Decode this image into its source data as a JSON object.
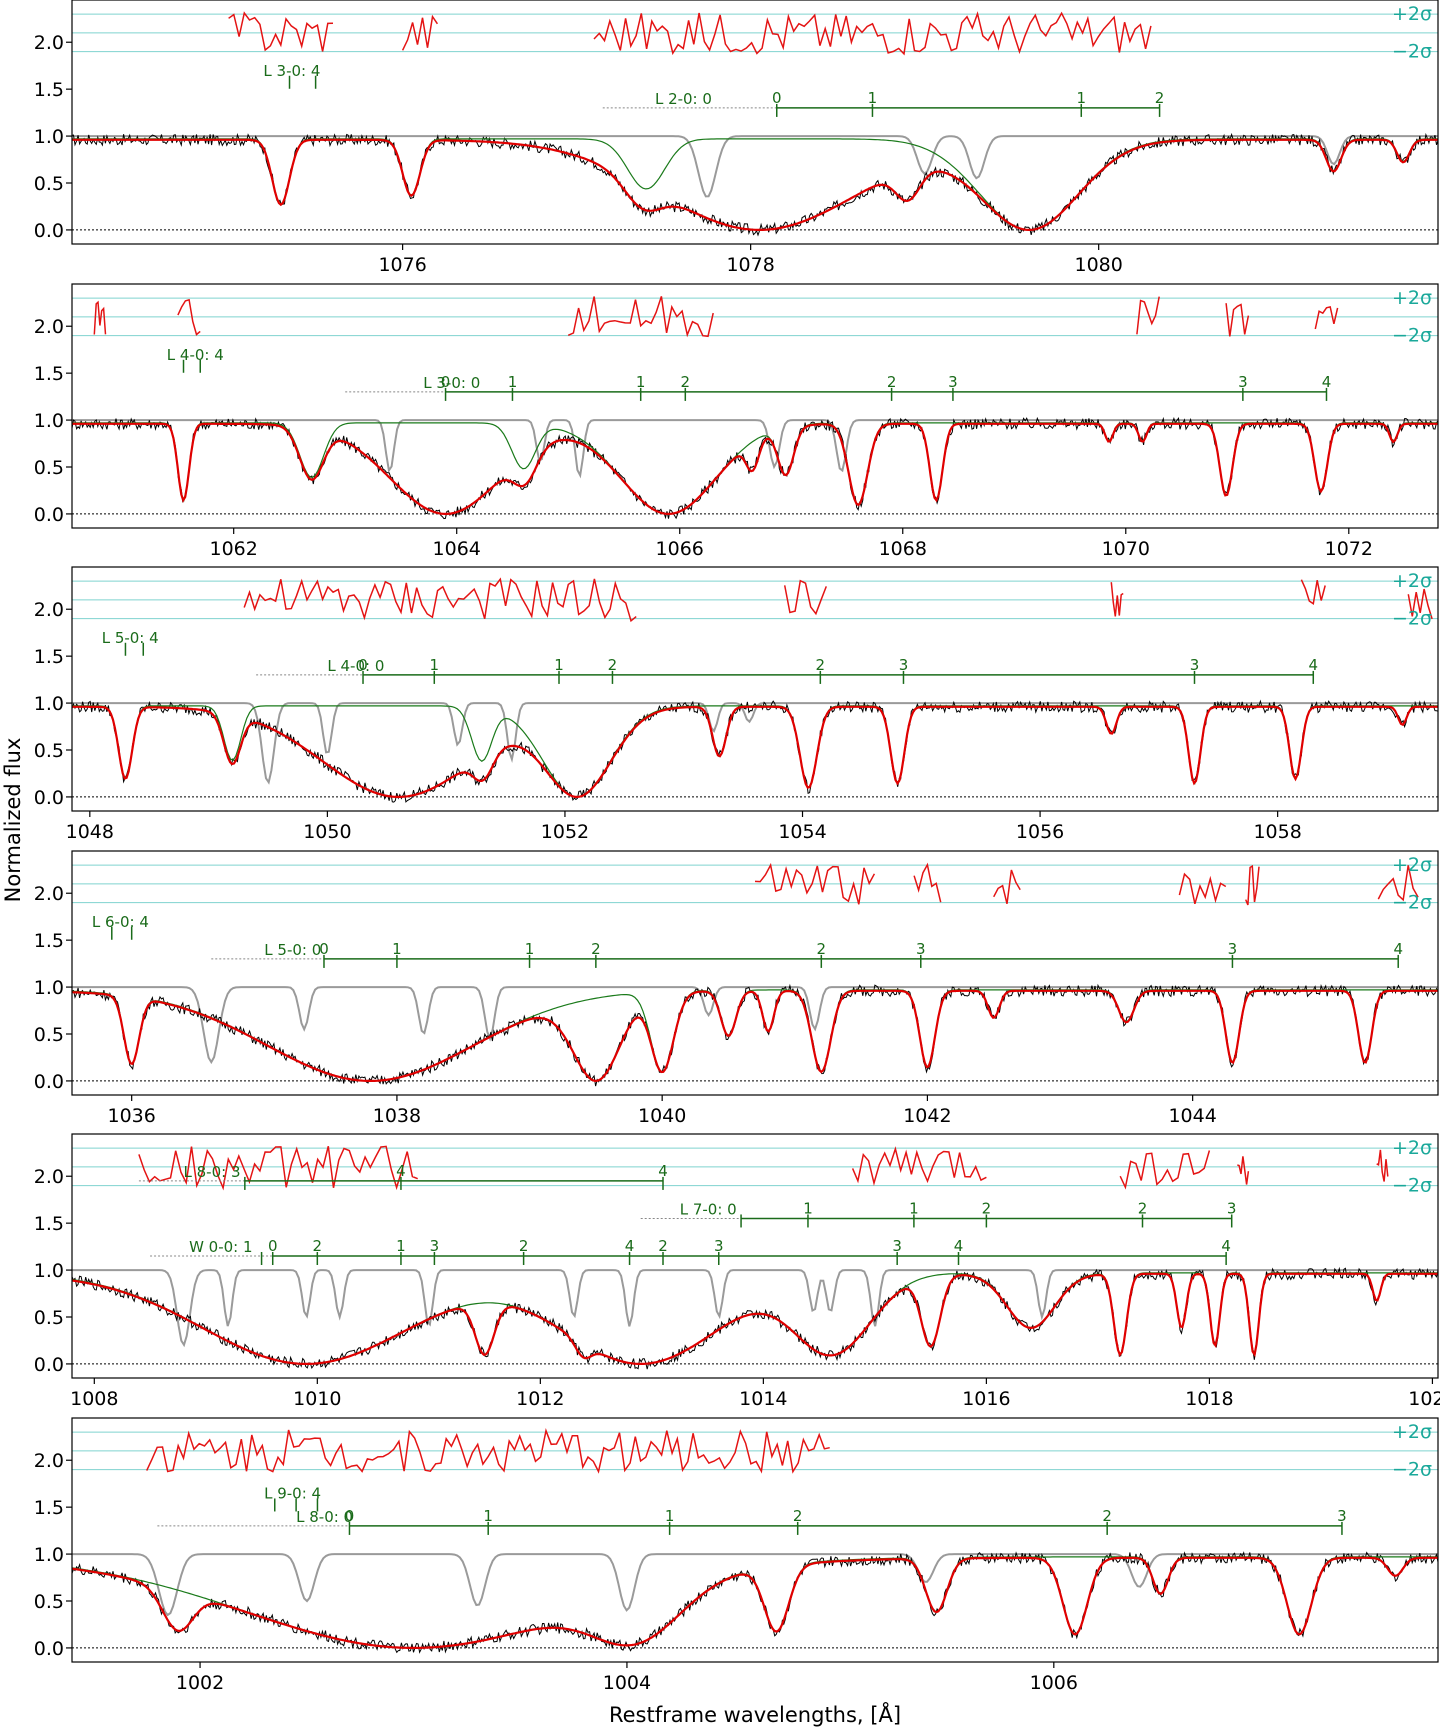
{
  "figure": {
    "ylabel": "Normalized flux",
    "xlabel": "Restframe wavelengths, [Å]",
    "sigma_plus": "+2σ",
    "sigma_minus": "−2σ"
  },
  "colors": {
    "data": "#000000",
    "fit": "#e00000",
    "residual": "#e41414",
    "component": "#9a9a9a",
    "partial": "#1a7a1a",
    "lines": "#1a6b1a",
    "sigma": "#7fd3cf"
  },
  "chart_data": [
    {
      "type": "line",
      "xlim": [
        1074.1,
        1081.95
      ],
      "ylim": [
        -0.15,
        2.45
      ],
      "xticks": [
        1076,
        1078,
        1080
      ],
      "yticks": [
        0.0,
        0.5,
        1.0,
        1.5,
        2.0
      ],
      "absorptions": [
        {
          "c": 1075.3,
          "d": 0.72,
          "w": 0.07
        },
        {
          "c": 1076.05,
          "d": 0.62,
          "w": 0.07
        },
        {
          "c": 1078.05,
          "d": 1.0,
          "w": 0.8
        },
        {
          "c": 1079.6,
          "d": 1.0,
          "w": 0.4
        },
        {
          "c": 1077.4,
          "d": 0.55,
          "w": 0.15
        },
        {
          "c": 1078.9,
          "d": 0.5,
          "w": 0.1
        },
        {
          "c": 1081.35,
          "d": 0.35,
          "w": 0.06
        },
        {
          "c": 1081.75,
          "d": 0.25,
          "w": 0.05
        }
      ],
      "components": [
        {
          "c": 1077.75,
          "d": 0.65,
          "w": 0.07
        },
        {
          "c": 1079.0,
          "d": 0.4,
          "w": 0.06
        },
        {
          "c": 1079.3,
          "d": 0.45,
          "w": 0.06
        },
        {
          "c": 1081.35,
          "d": 0.3,
          "w": 0.05
        }
      ],
      "residual_segments": [
        [
          1075.0,
          1075.6
        ],
        [
          1076.0,
          1076.2
        ],
        [
          1077.1,
          1080.3
        ]
      ],
      "line_sets": [
        {
          "label": "L 3-0: 4",
          "y": 1.6,
          "x_label": 1075.2,
          "start": null,
          "end": null,
          "ticks": [
            1075.35,
            1075.5
          ],
          "tick_labels": []
        },
        {
          "label": "L 2-0: 0",
          "y": 1.3,
          "x_label": 1077.45,
          "start": 1077.15,
          "solid_from": 1078.15,
          "end": 1080.35,
          "ticks": [
            1078.15,
            1078.7,
            1079.9,
            1080.35
          ],
          "tick_labels": [
            "0",
            "1",
            "1",
            "2"
          ]
        }
      ]
    },
    {
      "type": "line",
      "xlim": [
        1060.55,
        1072.8
      ],
      "ylim": [
        -0.15,
        2.45
      ],
      "xticks": [
        1062,
        1064,
        1066,
        1068,
        1070,
        1072
      ],
      "yticks": [
        0.0,
        0.5,
        1.0,
        1.5,
        2.0
      ],
      "absorptions": [
        {
          "c": 1061.55,
          "d": 0.85,
          "w": 0.07
        },
        {
          "c": 1062.7,
          "d": 0.6,
          "w": 0.15
        },
        {
          "c": 1063.9,
          "d": 1.0,
          "w": 0.7
        },
        {
          "c": 1065.9,
          "d": 1.0,
          "w": 0.6
        },
        {
          "c": 1064.6,
          "d": 0.5,
          "w": 0.15
        },
        {
          "c": 1066.65,
          "d": 0.4,
          "w": 0.08
        },
        {
          "c": 1066.95,
          "d": 0.55,
          "w": 0.1
        },
        {
          "c": 1067.6,
          "d": 0.9,
          "w": 0.12
        },
        {
          "c": 1068.3,
          "d": 0.85,
          "w": 0.08
        },
        {
          "c": 1069.85,
          "d": 0.2,
          "w": 0.05
        },
        {
          "c": 1070.15,
          "d": 0.2,
          "w": 0.05
        },
        {
          "c": 1070.9,
          "d": 0.8,
          "w": 0.08
        },
        {
          "c": 1071.75,
          "d": 0.75,
          "w": 0.08
        },
        {
          "c": 1072.4,
          "d": 0.2,
          "w": 0.05
        }
      ],
      "components": [
        {
          "c": 1063.4,
          "d": 0.55,
          "w": 0.05
        },
        {
          "c": 1064.75,
          "d": 0.45,
          "w": 0.05
        },
        {
          "c": 1065.1,
          "d": 0.6,
          "w": 0.05
        },
        {
          "c": 1066.85,
          "d": 0.5,
          "w": 0.06
        },
        {
          "c": 1067.45,
          "d": 0.55,
          "w": 0.06
        }
      ],
      "residual_segments": [
        [
          1060.75,
          1060.85
        ],
        [
          1061.5,
          1061.7
        ],
        [
          1065.0,
          1066.3
        ],
        [
          1070.1,
          1070.3
        ],
        [
          1070.9,
          1071.1
        ],
        [
          1071.7,
          1071.9
        ]
      ],
      "line_sets": [
        {
          "label": "L 4-0: 4",
          "y": 1.6,
          "x_label": 1061.4,
          "start": null,
          "end": null,
          "ticks": [
            1061.55,
            1061.7
          ],
          "tick_labels": []
        },
        {
          "label": "L 3-0: 0",
          "y": 1.3,
          "x_label": 1063.7,
          "start": 1063.0,
          "solid_from": 1063.9,
          "end": 1071.8,
          "ticks": [
            1063.9,
            1064.5,
            1065.65,
            1066.05,
            1067.9,
            1068.45,
            1071.05,
            1071.8
          ],
          "tick_labels": [
            "0",
            "1",
            "1",
            "2",
            "2",
            "3",
            "3",
            "4"
          ]
        }
      ]
    },
    {
      "type": "line",
      "xlim": [
        1047.85,
        1059.35
      ],
      "ylim": [
        -0.15,
        2.45
      ],
      "xticks": [
        1048,
        1050,
        1052,
        1054,
        1056,
        1058
      ],
      "yticks": [
        0.0,
        0.5,
        1.0,
        1.5,
        2.0
      ],
      "absorptions": [
        {
          "c": 1048.3,
          "d": 0.8,
          "w": 0.08
        },
        {
          "c": 1049.2,
          "d": 0.6,
          "w": 0.1
        },
        {
          "c": 1050.6,
          "d": 1.0,
          "w": 0.9
        },
        {
          "c": 1052.1,
          "d": 1.0,
          "w": 0.4
        },
        {
          "c": 1051.3,
          "d": 0.6,
          "w": 0.12
        },
        {
          "c": 1053.3,
          "d": 0.55,
          "w": 0.08
        },
        {
          "c": 1054.05,
          "d": 0.9,
          "w": 0.1
        },
        {
          "c": 1054.8,
          "d": 0.85,
          "w": 0.08
        },
        {
          "c": 1056.6,
          "d": 0.3,
          "w": 0.06
        },
        {
          "c": 1057.3,
          "d": 0.85,
          "w": 0.07
        },
        {
          "c": 1058.15,
          "d": 0.8,
          "w": 0.07
        },
        {
          "c": 1059.05,
          "d": 0.2,
          "w": 0.05
        }
      ],
      "components": [
        {
          "c": 1049.5,
          "d": 0.85,
          "w": 0.07
        },
        {
          "c": 1050.0,
          "d": 0.55,
          "w": 0.05
        },
        {
          "c": 1051.1,
          "d": 0.45,
          "w": 0.05
        },
        {
          "c": 1051.55,
          "d": 0.6,
          "w": 0.05
        },
        {
          "c": 1053.25,
          "d": 0.3,
          "w": 0.05
        },
        {
          "c": 1053.55,
          "d": 0.2,
          "w": 0.05
        }
      ],
      "residual_segments": [
        [
          1049.3,
          1052.6
        ],
        [
          1053.85,
          1054.2
        ],
        [
          1056.6,
          1056.7
        ],
        [
          1058.2,
          1058.4
        ],
        [
          1059.1,
          1059.3
        ]
      ],
      "line_sets": [
        {
          "label": "L 5-0: 4",
          "y": 1.6,
          "x_label": 1048.1,
          "start": null,
          "end": null,
          "ticks": [
            1048.3,
            1048.45
          ],
          "tick_labels": []
        },
        {
          "label": "L 4-0: 0",
          "y": 1.3,
          "x_label": 1050.0,
          "start": 1049.4,
          "solid_from": 1050.3,
          "end": 1058.3,
          "ticks": [
            1050.3,
            1050.9,
            1051.95,
            1052.4,
            1054.15,
            1054.85,
            1057.3,
            1058.3
          ],
          "tick_labels": [
            "0",
            "1",
            "1",
            "2",
            "2",
            "3",
            "3",
            "4"
          ]
        }
      ]
    },
    {
      "type": "line",
      "xlim": [
        1035.55,
        1045.85
      ],
      "ylim": [
        -0.15,
        2.45
      ],
      "xticks": [
        1036,
        1038,
        1040,
        1042,
        1044
      ],
      "yticks": [
        0.0,
        0.5,
        1.0,
        1.5,
        2.0
      ],
      "absorptions": [
        {
          "c": 1036.0,
          "d": 0.8,
          "w": 0.08
        },
        {
          "c": 1037.8,
          "d": 1.0,
          "w": 1.1
        },
        {
          "c": 1039.5,
          "d": 1.0,
          "w": 0.25
        },
        {
          "c": 1040.0,
          "d": 0.9,
          "w": 0.12
        },
        {
          "c": 1040.5,
          "d": 0.5,
          "w": 0.08
        },
        {
          "c": 1040.8,
          "d": 0.45,
          "w": 0.06
        },
        {
          "c": 1041.2,
          "d": 0.9,
          "w": 0.1
        },
        {
          "c": 1042.0,
          "d": 0.85,
          "w": 0.08
        },
        {
          "c": 1042.5,
          "d": 0.3,
          "w": 0.06
        },
        {
          "c": 1043.5,
          "d": 0.35,
          "w": 0.08
        },
        {
          "c": 1044.3,
          "d": 0.8,
          "w": 0.07
        },
        {
          "c": 1045.3,
          "d": 0.8,
          "w": 0.07
        }
      ],
      "components": [
        {
          "c": 1036.6,
          "d": 0.8,
          "w": 0.08
        },
        {
          "c": 1037.3,
          "d": 0.45,
          "w": 0.05
        },
        {
          "c": 1038.2,
          "d": 0.5,
          "w": 0.05
        },
        {
          "c": 1038.7,
          "d": 0.55,
          "w": 0.05
        },
        {
          "c": 1040.35,
          "d": 0.3,
          "w": 0.05
        },
        {
          "c": 1041.15,
          "d": 0.45,
          "w": 0.05
        }
      ],
      "residual_segments": [
        [
          1040.7,
          1041.6
        ],
        [
          1041.9,
          1042.1
        ],
        [
          1042.5,
          1042.7
        ],
        [
          1043.9,
          1044.25
        ],
        [
          1044.4,
          1044.5
        ],
        [
          1045.4,
          1045.7
        ]
      ],
      "line_sets": [
        {
          "label": "L 6-0: 4",
          "y": 1.6,
          "x_label": 1035.7,
          "start": null,
          "end": null,
          "ticks": [
            1035.85,
            1036.0
          ],
          "tick_labels": []
        },
        {
          "label": "L 5-0: 0",
          "y": 1.3,
          "x_label": 1037.0,
          "start": 1036.6,
          "solid_from": 1037.45,
          "end": 1045.55,
          "ticks": [
            1037.45,
            1038.0,
            1039.0,
            1039.5,
            1041.2,
            1041.95,
            1044.3,
            1045.55
          ],
          "tick_labels": [
            "0",
            "1",
            "1",
            "2",
            "2",
            "3",
            "3",
            "4"
          ]
        }
      ]
    },
    {
      "type": "line",
      "xlim": [
        1007.8,
        1020.05
      ],
      "ylim": [
        -0.15,
        2.45
      ],
      "xticks": [
        1008,
        1010,
        1012,
        1014,
        1016,
        1018,
        1020
      ],
      "yticks": [
        0.0,
        0.5,
        1.0,
        1.5,
        2.0
      ],
      "absorptions": [
        {
          "c": 1009.9,
          "d": 1.0,
          "w": 1.3
        },
        {
          "c": 1012.9,
          "d": 1.0,
          "w": 1.0
        },
        {
          "c": 1011.5,
          "d": 0.85,
          "w": 0.12
        },
        {
          "c": 1012.4,
          "d": 0.7,
          "w": 0.1
        },
        {
          "c": 1014.6,
          "d": 0.9,
          "w": 0.5
        },
        {
          "c": 1015.5,
          "d": 0.8,
          "w": 0.12
        },
        {
          "c": 1016.4,
          "d": 0.6,
          "w": 0.3
        },
        {
          "c": 1017.2,
          "d": 0.9,
          "w": 0.08
        },
        {
          "c": 1017.75,
          "d": 0.6,
          "w": 0.06
        },
        {
          "c": 1018.05,
          "d": 0.8,
          "w": 0.06
        },
        {
          "c": 1018.4,
          "d": 0.9,
          "w": 0.06
        },
        {
          "c": 1019.5,
          "d": 0.3,
          "w": 0.05
        }
      ],
      "components": [
        {
          "c": 1008.8,
          "d": 0.8,
          "w": 0.08
        },
        {
          "c": 1009.2,
          "d": 0.6,
          "w": 0.05
        },
        {
          "c": 1009.9,
          "d": 0.5,
          "w": 0.05
        },
        {
          "c": 1010.2,
          "d": 0.5,
          "w": 0.05
        },
        {
          "c": 1011.0,
          "d": 0.6,
          "w": 0.05
        },
        {
          "c": 1012.3,
          "d": 0.5,
          "w": 0.05
        },
        {
          "c": 1012.8,
          "d": 0.6,
          "w": 0.05
        },
        {
          "c": 1013.6,
          "d": 0.5,
          "w": 0.05
        },
        {
          "c": 1014.45,
          "d": 0.45,
          "w": 0.05
        },
        {
          "c": 1014.6,
          "d": 0.45,
          "w": 0.05
        },
        {
          "c": 1015.0,
          "d": 0.6,
          "w": 0.05
        },
        {
          "c": 1016.5,
          "d": 0.5,
          "w": 0.05
        }
      ],
      "residual_segments": [
        [
          1008.4,
          1010.9
        ],
        [
          1014.8,
          1016.0
        ],
        [
          1017.2,
          1018.0
        ],
        [
          1018.25,
          1018.35
        ],
        [
          1019.5,
          1019.6
        ]
      ],
      "line_sets": [
        {
          "label": "L 8-0: 3",
          "y": 1.95,
          "x_label": 1008.8,
          "start": 1008.4,
          "solid_from": 1009.35,
          "end": 1013.1,
          "ticks": [
            1009.35,
            1010.75,
            1013.1
          ],
          "tick_labels": [
            "",
            "4",
            "4"
          ]
        },
        {
          "label": "L 7-0: 0",
          "y": 1.55,
          "x_label": 1013.25,
          "start": 1012.9,
          "solid_from": 1013.8,
          "end": 1018.2,
          "ticks": [
            1013.8,
            1014.4,
            1015.35,
            1016.0,
            1017.4,
            1018.2
          ],
          "tick_labels": [
            "",
            "1",
            "1",
            "2",
            "2",
            "3"
          ]
        },
        {
          "label": "W 0-0: 1",
          "y": 1.15,
          "x_label": 1008.85,
          "start": 1008.5,
          "solid_from": 1009.6,
          "end": 1018.15,
          "ticks": [
            1009.5,
            1009.6,
            1010.0,
            1010.75,
            1011.05,
            1011.85,
            1012.8,
            1013.1,
            1013.6,
            1015.2,
            1015.75,
            1018.15
          ],
          "tick_labels": [
            "",
            "0",
            "2",
            "1",
            "3",
            "2",
            "4",
            "2",
            "3",
            "3",
            "4",
            "4"
          ]
        }
      ]
    },
    {
      "type": "line",
      "xlim": [
        1001.4,
        1007.8
      ],
      "ylim": [
        -0.15,
        2.45
      ],
      "xticks": [
        1002,
        1004,
        1006
      ],
      "yticks": [
        0.0,
        0.5,
        1.0,
        1.5,
        2.0
      ],
      "absorptions": [
        {
          "c": 1003.0,
          "d": 1.0,
          "w": 1.1
        },
        {
          "c": 1004.0,
          "d": 0.95,
          "w": 0.3
        },
        {
          "c": 1001.9,
          "d": 0.7,
          "w": 0.1
        },
        {
          "c": 1004.7,
          "d": 0.8,
          "w": 0.08
        },
        {
          "c": 1005.45,
          "d": 0.6,
          "w": 0.07
        },
        {
          "c": 1006.1,
          "d": 0.85,
          "w": 0.08
        },
        {
          "c": 1006.5,
          "d": 0.4,
          "w": 0.05
        },
        {
          "c": 1007.15,
          "d": 0.85,
          "w": 0.08
        },
        {
          "c": 1007.6,
          "d": 0.2,
          "w": 0.05
        }
      ],
      "components": [
        {
          "c": 1001.85,
          "d": 0.65,
          "w": 0.06
        },
        {
          "c": 1002.5,
          "d": 0.5,
          "w": 0.05
        },
        {
          "c": 1003.3,
          "d": 0.55,
          "w": 0.05
        },
        {
          "c": 1004.0,
          "d": 0.6,
          "w": 0.05
        },
        {
          "c": 1005.4,
          "d": 0.3,
          "w": 0.05
        },
        {
          "c": 1006.4,
          "d": 0.35,
          "w": 0.05
        }
      ],
      "residual_segments": [
        [
          1001.75,
          1004.95
        ]
      ],
      "line_sets": [
        {
          "label": "L 9-0: 4",
          "y": 1.55,
          "x_label": 1002.3,
          "start": null,
          "end": null,
          "ticks": [
            1002.35,
            1002.45,
            1002.55
          ],
          "tick_labels": []
        },
        {
          "label": "L 8-0: 0",
          "y": 1.3,
          "x_label": 1002.45,
          "start": 1001.8,
          "solid_from": 1002.7,
          "end": 1007.35,
          "ticks": [
            1002.7,
            1003.35,
            1004.2,
            1004.8,
            1006.25,
            1007.35
          ],
          "tick_labels": [
            "0",
            "1",
            "1",
            "2",
            "2",
            "3"
          ]
        }
      ]
    }
  ]
}
